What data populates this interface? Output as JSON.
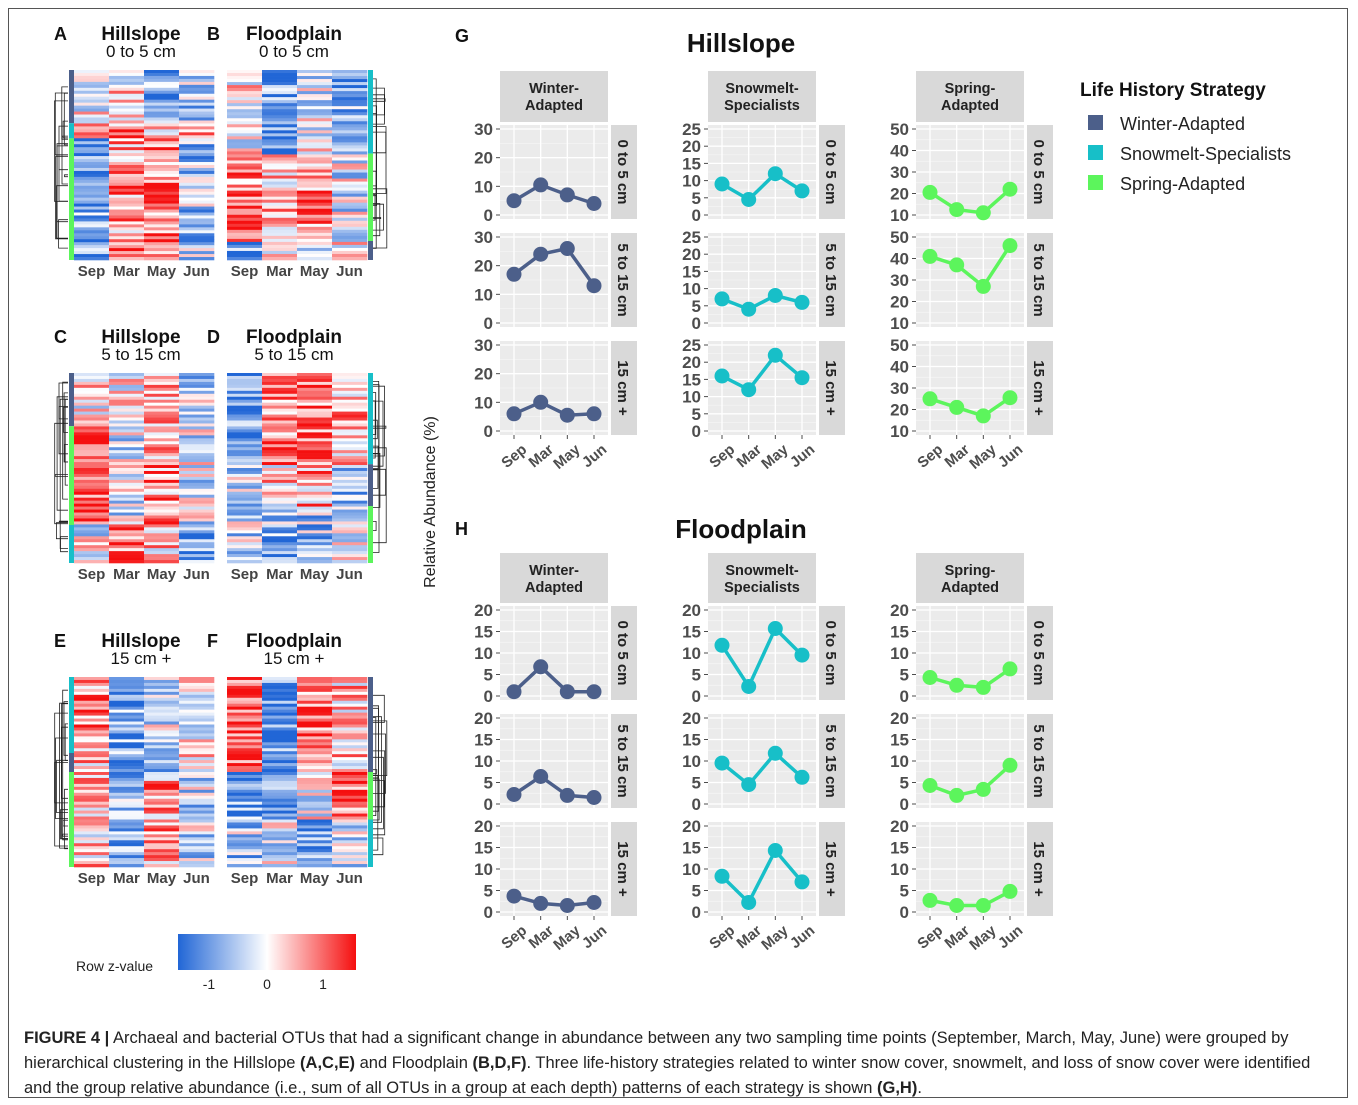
{
  "heatmaps": [
    {
      "letter": "A",
      "site": "Hillslope",
      "depth": "0 to 5 cm",
      "groups": [
        [
          "w",
          0.28
        ],
        [
          "s",
          0.08
        ],
        [
          "p",
          0.64
        ]
      ],
      "side": "left"
    },
    {
      "letter": "B",
      "site": "Floodplain",
      "depth": "0 to 5 cm",
      "groups": [
        [
          "s",
          0.44
        ],
        [
          "p",
          0.46
        ],
        [
          "w",
          0.1
        ]
      ],
      "side": "right"
    },
    {
      "letter": "C",
      "site": "Hillslope",
      "depth": "5 to 15 cm",
      "groups": [
        [
          "w",
          0.28
        ],
        [
          "p",
          0.52
        ],
        [
          "s",
          0.2
        ]
      ],
      "side": "left"
    },
    {
      "letter": "D",
      "site": "Floodplain",
      "depth": "5 to 15 cm",
      "groups": [
        [
          "s",
          0.48
        ],
        [
          "w",
          0.22
        ],
        [
          "p",
          0.3
        ]
      ],
      "side": "right"
    },
    {
      "letter": "E",
      "site": "Hillslope",
      "depth": "15 cm +",
      "groups": [
        [
          "s",
          0.4
        ],
        [
          "w",
          0.1
        ],
        [
          "p",
          0.5
        ]
      ],
      "side": "left"
    },
    {
      "letter": "F",
      "site": "Floodplain",
      "depth": "15 cm +",
      "groups": [
        [
          "w",
          0.5
        ],
        [
          "p",
          0.25
        ],
        [
          "s",
          0.25
        ]
      ],
      "side": "right"
    }
  ],
  "heatmap_months": [
    "Sep",
    "Mar",
    "May",
    "Jun"
  ],
  "colorbar": {
    "label": "Row z-value",
    "ticks": [
      "-1",
      "0",
      "1"
    ]
  },
  "panel_labels": {
    "g": "G",
    "h": "H"
  },
  "axis_ylabel": "Relative Abundance (%)",
  "legend": {
    "title": "Life History Strategy",
    "items": [
      {
        "label": "Winter-Adapted",
        "color": "#4C5F8A"
      },
      {
        "label": "Snowmelt-Specialists",
        "color": "#17BFC8"
      },
      {
        "label": "Spring-Adapted",
        "color": "#5CF55C"
      }
    ]
  },
  "chart_data": [
    {
      "type": "line",
      "title": "Hillslope",
      "x": [
        "Sep",
        "Mar",
        "May",
        "Jun"
      ],
      "ylabel": "Relative Abundance (%)",
      "columns": [
        {
          "label": "Winter-\nAdapted",
          "color": "#4C5F8A",
          "ylim": [
            0,
            30
          ],
          "ticks": [
            0,
            10,
            20,
            30
          ]
        },
        {
          "label": "Snowmelt-\nSpecialists",
          "color": "#17BFC8",
          "ylim": [
            0,
            25
          ],
          "ticks": [
            0,
            5,
            10,
            15,
            20,
            25
          ]
        },
        {
          "label": "Spring-\nAdapted",
          "color": "#5CF55C",
          "ylim": [
            10,
            50
          ],
          "ticks": [
            10,
            20,
            30,
            40,
            50
          ]
        }
      ],
      "rows": [
        "0 to 5 cm",
        "5 to 15 cm",
        "15 cm +"
      ],
      "series": [
        [
          [
            5,
            10.5,
            7,
            4
          ],
          [
            9,
            4.5,
            12,
            7
          ],
          [
            20.5,
            12.5,
            11,
            22
          ]
        ],
        [
          [
            17,
            24,
            26,
            13
          ],
          [
            7,
            4,
            8,
            6
          ],
          [
            41,
            37,
            27,
            46
          ]
        ],
        [
          [
            6,
            10,
            5.5,
            6
          ],
          [
            16,
            12,
            22,
            15.5
          ],
          [
            25,
            21,
            17,
            25.5
          ]
        ]
      ]
    },
    {
      "type": "line",
      "title": "Floodplain",
      "x": [
        "Sep",
        "Mar",
        "May",
        "Jun"
      ],
      "ylabel": "Relative Abundance (%)",
      "columns": [
        {
          "label": "Winter-\nAdapted",
          "color": "#4C5F8A",
          "ylim": [
            0,
            20
          ],
          "ticks": [
            0,
            5,
            10,
            15,
            20
          ]
        },
        {
          "label": "Snowmelt-\nSpecialists",
          "color": "#17BFC8",
          "ylim": [
            0,
            20
          ],
          "ticks": [
            0,
            5,
            10,
            15,
            20
          ]
        },
        {
          "label": "Spring-\nAdapted",
          "color": "#5CF55C",
          "ylim": [
            0,
            20
          ],
          "ticks": [
            0,
            5,
            10,
            15,
            20
          ]
        }
      ],
      "rows": [
        "0 to 5 cm",
        "5 to 15 cm",
        "15 cm +"
      ],
      "series": [
        [
          [
            1,
            6.8,
            1,
            1
          ],
          [
            11.8,
            2.2,
            15.7,
            9.5
          ],
          [
            4.3,
            2.5,
            2,
            6.3
          ]
        ],
        [
          [
            2.2,
            6.4,
            2,
            1.5
          ],
          [
            9.5,
            4.5,
            11.8,
            6.2
          ],
          [
            4.3,
            2,
            3.4,
            9
          ]
        ],
        [
          [
            3.7,
            2,
            1.5,
            2.2
          ],
          [
            8.3,
            2.2,
            14.3,
            7
          ],
          [
            2.7,
            1.5,
            1.5,
            4.8
          ]
        ]
      ]
    }
  ],
  "caption": {
    "lead": "FIGURE 4 |",
    "s1": " Archaeal and bacterial OTUs that had a significant change in abundance between any two sampling time points (September, March, May, June) were grouped by hierarchical clustering in the Hillslope ",
    "b1": "(A,C,E)",
    "s2": " and Floodplain ",
    "b2": "(B,D,F)",
    "s3": ". Three life-history strategies related to winter snow cover, snowmelt, and loss of snow cover were identified and the group relative abundance (i.e., sum of all OTUs in a group at each depth) patterns of each strategy is shown ",
    "b3": "(G,H)",
    "s4": "."
  }
}
